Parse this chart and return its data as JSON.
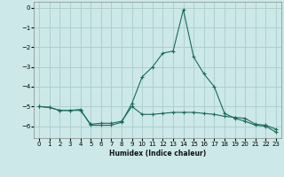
{
  "title": "",
  "xlabel": "Humidex (Indice chaleur)",
  "ylabel": "",
  "bg_color": "#cce8e8",
  "grid_color": "#aacccc",
  "line_color": "#1a6b5a",
  "xlim": [
    -0.5,
    23.5
  ],
  "ylim": [
    -6.6,
    0.3
  ],
  "xticks": [
    0,
    1,
    2,
    3,
    4,
    5,
    6,
    7,
    8,
    9,
    10,
    11,
    12,
    13,
    14,
    15,
    16,
    17,
    18,
    19,
    20,
    21,
    22,
    23
  ],
  "yticks": [
    0,
    -1,
    -2,
    -3,
    -4,
    -5,
    -6
  ],
  "line1_x": [
    0,
    1,
    2,
    3,
    4,
    5,
    6,
    7,
    8,
    9,
    10,
    11,
    12,
    13,
    14,
    15,
    16,
    17,
    18,
    19,
    20,
    21,
    22,
    23
  ],
  "line1_y": [
    -5.0,
    -5.05,
    -5.2,
    -5.2,
    -5.2,
    -5.9,
    -5.85,
    -5.85,
    -5.75,
    -5.0,
    -5.4,
    -5.4,
    -5.35,
    -5.3,
    -5.3,
    -5.3,
    -5.35,
    -5.4,
    -5.5,
    -5.55,
    -5.6,
    -5.9,
    -5.95,
    -6.15
  ],
  "line2_x": [
    0,
    1,
    2,
    3,
    4,
    5,
    6,
    7,
    8,
    9,
    10,
    11,
    12,
    13,
    14,
    15,
    16,
    17,
    18,
    19,
    20,
    21,
    22,
    23
  ],
  "line2_y": [
    -5.0,
    -5.05,
    -5.2,
    -5.2,
    -5.15,
    -5.95,
    -5.95,
    -5.95,
    -5.8,
    -4.85,
    -3.5,
    -3.0,
    -2.3,
    -2.2,
    -0.1,
    -2.5,
    -3.35,
    -4.0,
    -5.35,
    -5.6,
    -5.75,
    -5.95,
    -6.0,
    -6.3
  ],
  "marker": "+"
}
